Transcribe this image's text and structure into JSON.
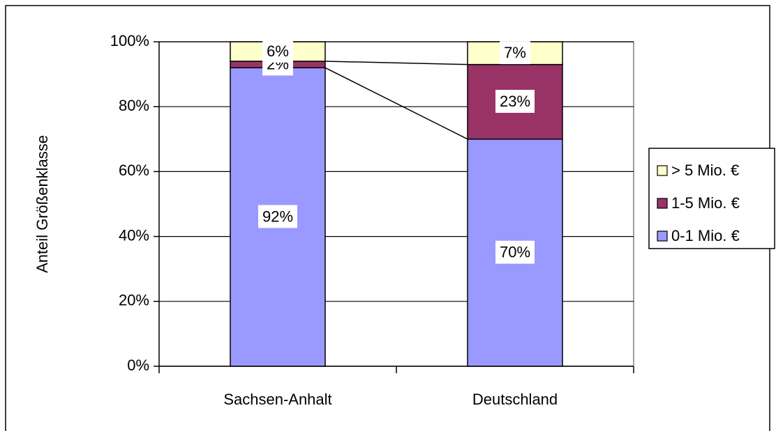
{
  "chart_data": {
    "type": "stacked_bar",
    "y_label": "Anteil Größenklasse",
    "categories": [
      "Sachsen-Anhalt",
      "Deutschland"
    ],
    "series": [
      {
        "name": "0-1 Mio. €",
        "color": "#9999ff",
        "values": [
          92,
          70
        ],
        "value_labels": [
          "92%",
          "70%"
        ]
      },
      {
        "name": "1-5 Mio. €",
        "color": "#993366",
        "values": [
          2,
          23
        ],
        "value_labels": [
          "2%",
          "23%"
        ]
      },
      {
        "name": "> 5 Mio. €",
        "color": "#ffffcc",
        "values": [
          6,
          7
        ],
        "value_labels": [
          "6%",
          "7%"
        ]
      }
    ],
    "ylim": [
      0,
      100
    ],
    "yticks": [
      {
        "value": 0,
        "label": "0%"
      },
      {
        "value": 20,
        "label": "20%"
      },
      {
        "value": 40,
        "label": "40%"
      },
      {
        "value": 60,
        "label": "60%"
      },
      {
        "value": 80,
        "label": "80%"
      },
      {
        "value": 100,
        "label": "100%"
      }
    ],
    "grid": true,
    "legend": "right"
  }
}
